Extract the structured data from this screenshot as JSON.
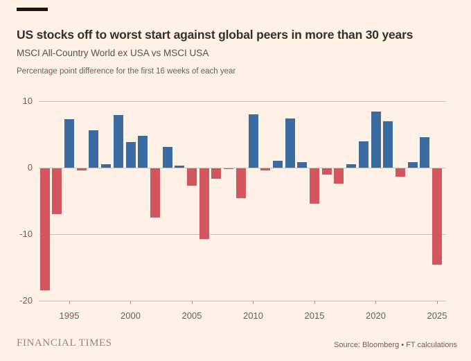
{
  "page": {
    "background": "#FFF1E5"
  },
  "header": {
    "accent_bar_color": "#1A1817",
    "title": "US stocks off to worst start against global peers in more than 30 years",
    "subtitle": "MSCI All-Country World ex USA vs MSCI USA",
    "description": "Percentage point difference for the first 16 weeks of each year"
  },
  "chart_data": {
    "type": "bar",
    "title": "US stocks off to worst start against global peers in more than 30 years",
    "subtitle": "MSCI All-Country World ex USA vs MSCI USA",
    "annotation": "Percentage point difference for the first 16 weeks of each year",
    "categories": [
      1993,
      1994,
      1995,
      1996,
      1997,
      1998,
      1999,
      2000,
      2001,
      2002,
      2003,
      2004,
      2005,
      2006,
      2007,
      2008,
      2009,
      2010,
      2011,
      2012,
      2013,
      2014,
      2015,
      2016,
      2017,
      2018,
      2019,
      2020,
      2021,
      2022,
      2023,
      2024,
      2025
    ],
    "values": [
      -18.3,
      -6.9,
      7.3,
      -0.3,
      5.6,
      0.5,
      7.9,
      3.9,
      4.8,
      -7.4,
      3.1,
      0.3,
      -2.6,
      -10.6,
      -1.6,
      -0.15,
      -4.5,
      8.0,
      -0.35,
      1.0,
      7.4,
      0.8,
      -5.3,
      -0.9,
      -2.3,
      0.5,
      4.0,
      8.4,
      7.0,
      -1.2,
      0.8,
      4.6,
      -14.5
    ],
    "xlabel": "",
    "ylabel": "",
    "ylim": [
      -20,
      10
    ],
    "y_ticks": [
      10,
      0,
      -10,
      -20
    ],
    "x_ticks": [
      1995,
      2000,
      2005,
      2010,
      2015,
      2020,
      2025
    ],
    "grid": "horizontal",
    "legend": "none",
    "positive_color": "#3A6CA2",
    "negative_color": "#D3555E",
    "grid_color": "#CCC2B8",
    "tick_color": "#A39A8E",
    "axis_text_color": "#66605C"
  },
  "footer": {
    "brand": "FINANCIAL TIMES",
    "source": "Source: Bloomberg • FT calculations"
  }
}
